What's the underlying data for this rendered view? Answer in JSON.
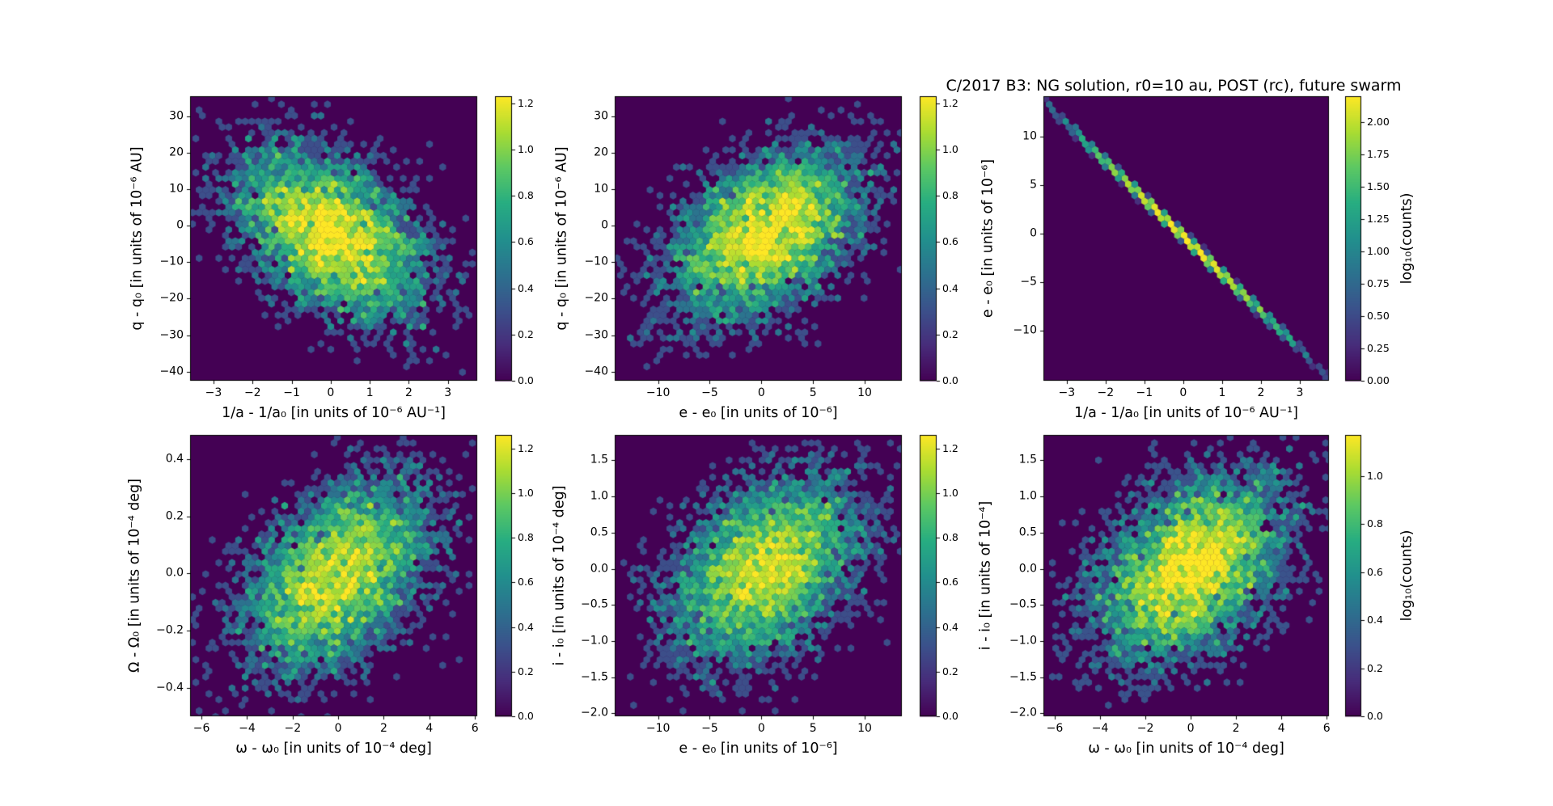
{
  "figure_title": "C/2017 B3: NG solution, r0=10 au, POST (rc), future swarm",
  "colormap": {
    "name": "viridis",
    "background": "#440154",
    "peak": "#fde725"
  },
  "chart_data": [
    {
      "id": "dq-vs-dinverse-a",
      "type": "hexbin",
      "grid_position": {
        "row": 0,
        "col": 0
      },
      "xlabel": "1/a - 1/a₀ [in units of 10⁻⁶ AU⁻¹]",
      "ylabel": "q - q₀ [in units of 10⁻⁶ AU]",
      "xlim": [
        -3.6,
        3.75
      ],
      "ylim": [
        -42.5,
        35.5
      ],
      "xticks": [
        -3,
        -2,
        -1,
        0,
        1,
        2,
        3
      ],
      "xtick_labels": [
        "−3",
        "−2",
        "−1",
        "0",
        "1",
        "2",
        "3"
      ],
      "yticks": [
        30,
        20,
        10,
        0,
        -10,
        -20,
        -30,
        -40
      ],
      "ytick_labels": [
        "30",
        "20",
        "10",
        "0",
        "−10",
        "−20",
        "−30",
        "−40"
      ],
      "color_scale": "log10(counts)",
      "colorbar": {
        "vmax": 1.23,
        "ticks": [
          0,
          0.2,
          0.4,
          0.6,
          0.8,
          1.0,
          1.2
        ],
        "tick_labels": [
          "0.0",
          "0.2",
          "0.4",
          "0.6",
          "0.8",
          "1.0",
          "1.2"
        ],
        "label": null
      },
      "distribution": {
        "kind": "gaussian2d",
        "n": 4800,
        "center": [
          0,
          -2
        ],
        "sigma": [
          1.2,
          11.5
        ],
        "rho": -0.45,
        "seed": 11
      },
      "layout": {
        "plot": [
          235,
          119,
          355,
          352
        ],
        "cbar": [
          612,
          119,
          21,
          352
        ],
        "ylabel_offset": 65
      }
    },
    {
      "id": "dq-vs-de",
      "type": "hexbin",
      "grid_position": {
        "row": 0,
        "col": 1
      },
      "xlabel": "e - e₀ [in units of 10⁻⁶]",
      "ylabel": "q - q₀ [in units of 10⁻⁶ AU]",
      "xlim": [
        -14.2,
        13.6
      ],
      "ylim": [
        -42.5,
        35.5
      ],
      "xticks": [
        -10,
        -5,
        0,
        5,
        10
      ],
      "xtick_labels": [
        "−10",
        "−5",
        "0",
        "5",
        "10"
      ],
      "yticks": [
        30,
        20,
        10,
        0,
        -10,
        -20,
        -30,
        -40
      ],
      "ytick_labels": [
        "30",
        "20",
        "10",
        "0",
        "−10",
        "−20",
        "−30",
        "−40"
      ],
      "color_scale": "log10(counts)",
      "colorbar": {
        "vmax": 1.23,
        "ticks": [
          0,
          0.2,
          0.4,
          0.6,
          0.8,
          1.0,
          1.2
        ],
        "tick_labels": [
          "0.0",
          "0.2",
          "0.4",
          "0.6",
          "0.8",
          "1.0",
          "1.2"
        ],
        "label": null
      },
      "distribution": {
        "kind": "gaussian2d",
        "n": 4800,
        "center": [
          0.5,
          -2
        ],
        "sigma": [
          4.6,
          11.5
        ],
        "rho": 0.45,
        "seed": 22
      },
      "layout": {
        "plot": [
          760,
          119,
          355,
          352
        ],
        "cbar": [
          1137,
          119,
          21,
          352
        ],
        "ylabel_offset": 65
      }
    },
    {
      "id": "de-vs-dinverse-a",
      "type": "hexbin",
      "grid_position": {
        "row": 0,
        "col": 2
      },
      "xlabel": "1/a - 1/a₀ [in units of 10⁻⁶ AU⁻¹]",
      "ylabel": "e - e₀ [in units of 10⁻⁶]",
      "xlim": [
        -3.6,
        3.75
      ],
      "ylim": [
        -15.2,
        14.2
      ],
      "xticks": [
        -3,
        -2,
        -1,
        0,
        1,
        2,
        3
      ],
      "xtick_labels": [
        "−3",
        "−2",
        "−1",
        "0",
        "1",
        "2",
        "3"
      ],
      "yticks": [
        10,
        5,
        0,
        -5,
        -10
      ],
      "ytick_labels": [
        "10",
        "5",
        "0",
        "−5",
        "−10"
      ],
      "color_scale": "log10(counts)",
      "colorbar": {
        "vmax": 2.2,
        "ticks": [
          0,
          0.25,
          0.5,
          0.75,
          1.0,
          1.25,
          1.5,
          1.75,
          2.0
        ],
        "tick_labels": [
          "0.00",
          "0.25",
          "0.50",
          "0.75",
          "1.00",
          "1.25",
          "1.50",
          "1.75",
          "2.00"
        ],
        "label": "log₁₀(counts)"
      },
      "distribution": {
        "kind": "gaussian2d",
        "n": 4000,
        "center": [
          0,
          -0.3
        ],
        "sigma": [
          1.25,
          4.85
        ],
        "rho": -0.9997,
        "seed": 33
      },
      "layout": {
        "plot": [
          1290,
          119,
          353,
          352
        ],
        "cbar": [
          1663,
          119,
          20,
          352
        ],
        "ylabel_offset": 68
      }
    },
    {
      "id": "dOmega-vs-domega",
      "type": "hexbin",
      "grid_position": {
        "row": 1,
        "col": 0
      },
      "xlabel": "ω - ω₀ [in units of 10⁻⁴ deg]",
      "ylabel": "Ω - Ω₀ [in units of 10⁻⁴ deg]",
      "xlim": [
        -6.5,
        6.1
      ],
      "ylim": [
        -0.5,
        0.485
      ],
      "xticks": [
        -6,
        -4,
        -2,
        0,
        2,
        4,
        6
      ],
      "xtick_labels": [
        "−6",
        "−4",
        "−2",
        "0",
        "2",
        "4",
        "6"
      ],
      "yticks": [
        0.4,
        0.2,
        0,
        -0.2,
        -0.4
      ],
      "ytick_labels": [
        "0.4",
        "0.2",
        "0.0",
        "−0.2",
        "−0.4"
      ],
      "color_scale": "log10(counts)",
      "colorbar": {
        "vmax": 1.26,
        "ticks": [
          0,
          0.2,
          0.4,
          0.6,
          0.8,
          1.0,
          1.2
        ],
        "tick_labels": [
          "0.0",
          "0.2",
          "0.4",
          "0.6",
          "0.8",
          "1.0",
          "1.2"
        ],
        "label": null
      },
      "distribution": {
        "kind": "gaussian2d",
        "n": 4800,
        "center": [
          -0.1,
          -0.01
        ],
        "sigma": [
          2.05,
          0.165
        ],
        "rho": 0.42,
        "seed": 44
      },
      "layout": {
        "plot": [
          235,
          538,
          355,
          348
        ],
        "cbar": [
          612,
          538,
          21,
          348
        ],
        "ylabel_offset": 68
      }
    },
    {
      "id": "di-vs-de",
      "type": "hexbin",
      "grid_position": {
        "row": 1,
        "col": 1
      },
      "xlabel": "e - e₀ [in units of 10⁻⁶]",
      "ylabel": "i - i₀ [in units of 10⁻⁴ deg]",
      "xlim": [
        -14.2,
        13.6
      ],
      "ylim": [
        -2.04,
        1.85
      ],
      "xticks": [
        -10,
        -5,
        0,
        5,
        10
      ],
      "xtick_labels": [
        "−10",
        "−5",
        "0",
        "5",
        "10"
      ],
      "yticks": [
        1.5,
        1.0,
        0.5,
        0,
        -0.5,
        -1.0,
        -1.5,
        -2.0
      ],
      "ytick_labels": [
        "1.5",
        "1.0",
        "0.5",
        "0.0",
        "−0.5",
        "−1.0",
        "−1.5",
        "−2.0"
      ],
      "color_scale": "log10(counts)",
      "colorbar": {
        "vmax": 1.26,
        "ticks": [
          0,
          0.2,
          0.4,
          0.6,
          0.8,
          1.0,
          1.2
        ],
        "tick_labels": [
          "0.0",
          "0.2",
          "0.4",
          "0.6",
          "0.8",
          "1.0",
          "1.2"
        ],
        "label": null
      },
      "distribution": {
        "kind": "gaussian2d",
        "n": 4800,
        "center": [
          0.3,
          0
        ],
        "sigma": [
          4.6,
          0.62
        ],
        "rho": 0.38,
        "seed": 55
      },
      "layout": {
        "plot": [
          760,
          538,
          355,
          348
        ],
        "cbar": [
          1137,
          538,
          21,
          348
        ],
        "ylabel_offset": 68
      }
    },
    {
      "id": "di-vs-domega",
      "type": "hexbin",
      "grid_position": {
        "row": 1,
        "col": 2
      },
      "xlabel": "ω - ω₀ [in units of 10⁻⁴ deg]",
      "ylabel": "i - i₀ [in units of 10⁻⁴]",
      "xlim": [
        -6.5,
        6.1
      ],
      "ylim": [
        -2.04,
        1.85
      ],
      "xticks": [
        -6,
        -4,
        -2,
        0,
        2,
        4,
        6
      ],
      "xtick_labels": [
        "−6",
        "−4",
        "−2",
        "0",
        "2",
        "4",
        "6"
      ],
      "yticks": [
        1.5,
        1.0,
        0.5,
        0,
        -0.5,
        -1.0,
        -1.5,
        -2.0
      ],
      "ytick_labels": [
        "1.5",
        "1.0",
        "0.5",
        "0.0",
        "−0.5",
        "−1.0",
        "−1.5",
        "−2.0"
      ],
      "color_scale": "log10(counts)",
      "colorbar": {
        "vmax": 1.17,
        "ticks": [
          0,
          0.2,
          0.4,
          0.6,
          0.8,
          1.0
        ],
        "tick_labels": [
          "0.0",
          "0.2",
          "0.4",
          "0.6",
          "0.8",
          "1.0"
        ],
        "label": "log₁₀(counts)"
      },
      "distribution": {
        "kind": "gaussian2d",
        "n": 4800,
        "center": [
          0,
          0
        ],
        "sigma": [
          2.05,
          0.62
        ],
        "rho": 0.42,
        "seed": 66
      },
      "layout": {
        "plot": [
          1290,
          538,
          353,
          348
        ],
        "cbar": [
          1663,
          538,
          20,
          348
        ],
        "ylabel_offset": 71
      }
    }
  ]
}
